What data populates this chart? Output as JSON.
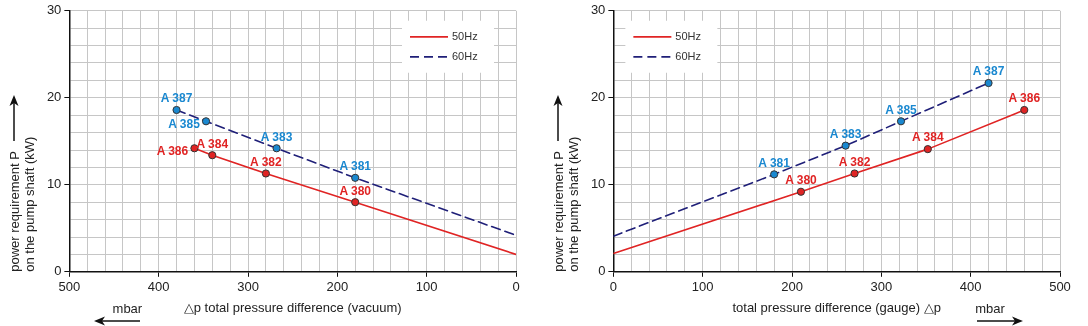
{
  "chart_data": [
    {
      "type": "line",
      "xlabel": "△p total pressure difference (vacuum)",
      "ylabel": "power requirement P\non the pump shaft (kW)",
      "annotations": [
        "mbar"
      ],
      "xlim": [
        500,
        0
      ],
      "ylim": [
        0,
        30
      ],
      "xticks": [
        0,
        {
          "value": 20,
          "label": null
        },
        {
          "value": 40,
          "label": null
        },
        {
          "value": 60,
          "label": null
        },
        {
          "value": 80,
          "label": null
        },
        100,
        {
          "value": 120,
          "label": null
        },
        {
          "value": 140,
          "label": null
        },
        {
          "value": 160,
          "label": null
        },
        {
          "value": 180,
          "label": null
        },
        200,
        {
          "value": 220,
          "label": null
        },
        {
          "value": 240,
          "label": null
        },
        {
          "value": 260,
          "label": null
        },
        {
          "value": 280,
          "label": null
        },
        300,
        {
          "value": 320,
          "label": null
        },
        {
          "value": 340,
          "label": null
        },
        {
          "value": 360,
          "label": null
        },
        {
          "value": 380,
          "label": null
        },
        400,
        {
          "value": 420,
          "label": null
        },
        {
          "value": 440,
          "label": null
        },
        {
          "value": 460,
          "label": null
        },
        {
          "value": 480,
          "label": null
        },
        500
      ],
      "yticks": [
        0,
        {
          "value": 2,
          "label": null
        },
        {
          "value": 4,
          "label": null
        },
        {
          "value": 6,
          "label": null
        },
        {
          "value": 8,
          "label": null
        },
        10,
        {
          "value": 12,
          "label": null
        },
        {
          "value": 14,
          "label": null
        },
        {
          "value": 16,
          "label": null
        },
        {
          "value": 18,
          "label": null
        },
        20,
        {
          "value": 22,
          "label": null
        },
        {
          "value": 24,
          "label": null
        },
        {
          "value": 26,
          "label": null
        },
        {
          "value": 28,
          "label": null
        },
        30
      ],
      "grid": true,
      "legend": "top right",
      "series": [
        {
          "name": "50Hz",
          "type": "line",
          "color": "#e02424",
          "marker": "none",
          "x": [
            360,
            340,
            280,
            180,
            0
          ],
          "values": [
            14.2,
            13.4,
            11.3,
            8.0,
            2.0
          ]
        },
        {
          "name": "60Hz",
          "type": "line",
          "color": "#1f1f78",
          "marker": "none",
          "line_style": "dashed",
          "x": [
            380,
            347,
            268,
            180,
            0
          ],
          "values": [
            18.6,
            17.3,
            14.2,
            10.8,
            4.2
          ]
        },
        {
          "type": "scatter",
          "color": "#e02424",
          "marker": "circle",
          "x": [
            360,
            340,
            280,
            180
          ],
          "values": [
            14.2,
            13.4,
            11.3,
            8.0
          ],
          "value_labels": [
            "A 386",
            "A 384",
            "A 382",
            "A 380"
          ]
        },
        {
          "type": "scatter",
          "color": "#1a88d0",
          "marker": "circle",
          "x": [
            380,
            347,
            268,
            180
          ],
          "values": [
            18.6,
            17.3,
            14.2,
            10.8
          ],
          "value_labels": [
            "A 387",
            "A 385",
            "A 383",
            "A 381"
          ]
        }
      ]
    },
    {
      "type": "line",
      "xlabel": "total pressure difference (gauge) △p",
      "ylabel": "power requirement P\non the pump shaft (kW)",
      "annotations": [
        "mbar"
      ],
      "xlim": [
        0,
        500
      ],
      "ylim": [
        0,
        30
      ],
      "xticks": [
        0,
        {
          "value": 20,
          "label": null
        },
        {
          "value": 40,
          "label": null
        },
        {
          "value": 60,
          "label": null
        },
        {
          "value": 80,
          "label": null
        },
        100,
        {
          "value": 120,
          "label": null
        },
        {
          "value": 140,
          "label": null
        },
        {
          "value": 160,
          "label": null
        },
        {
          "value": 180,
          "label": null
        },
        200,
        {
          "value": 220,
          "label": null
        },
        {
          "value": 240,
          "label": null
        },
        {
          "value": 260,
          "label": null
        },
        {
          "value": 280,
          "label": null
        },
        300,
        {
          "value": 320,
          "label": null
        },
        {
          "value": 340,
          "label": null
        },
        {
          "value": 360,
          "label": null
        },
        {
          "value": 380,
          "label": null
        },
        400,
        {
          "value": 420,
          "label": null
        },
        {
          "value": 440,
          "label": null
        },
        {
          "value": 460,
          "label": null
        },
        {
          "value": 480,
          "label": null
        },
        500
      ],
      "yticks": [
        0,
        {
          "value": 2,
          "label": null
        },
        {
          "value": 4,
          "label": null
        },
        {
          "value": 6,
          "label": null
        },
        {
          "value": 8,
          "label": null
        },
        10,
        {
          "value": 12,
          "label": null
        },
        {
          "value": 14,
          "label": null
        },
        {
          "value": 16,
          "label": null
        },
        {
          "value": 18,
          "label": null
        },
        20,
        {
          "value": 22,
          "label": null
        },
        {
          "value": 24,
          "label": null
        },
        {
          "value": 26,
          "label": null
        },
        {
          "value": 28,
          "label": null
        },
        30
      ],
      "grid": true,
      "legend": "top left",
      "series": [
        {
          "name": "50Hz",
          "type": "line",
          "color": "#e02424",
          "marker": "none",
          "x": [
            0,
            210,
            270,
            352,
            460
          ],
          "values": [
            2.1,
            9.2,
            11.3,
            14.1,
            18.6
          ]
        },
        {
          "name": "60Hz",
          "type": "line",
          "color": "#1f1f78",
          "marker": "none",
          "line_style": "dashed",
          "x": [
            0,
            180,
            260,
            322,
            420
          ],
          "values": [
            4.1,
            11.2,
            14.5,
            17.3,
            21.7
          ]
        },
        {
          "type": "scatter",
          "color": "#e02424",
          "marker": "circle",
          "x": [
            210,
            270,
            352,
            460
          ],
          "values": [
            9.2,
            11.3,
            14.1,
            18.6
          ],
          "value_labels": [
            "A 380",
            "A 382",
            "A 384",
            "A 386"
          ]
        },
        {
          "type": "scatter",
          "color": "#1a88d0",
          "marker": "circle",
          "x": [
            180,
            260,
            322,
            420
          ],
          "values": [
            11.2,
            14.5,
            17.3,
            21.7
          ],
          "value_labels": [
            "A 381",
            "A 383",
            "A 385",
            "A 387"
          ]
        }
      ]
    }
  ]
}
